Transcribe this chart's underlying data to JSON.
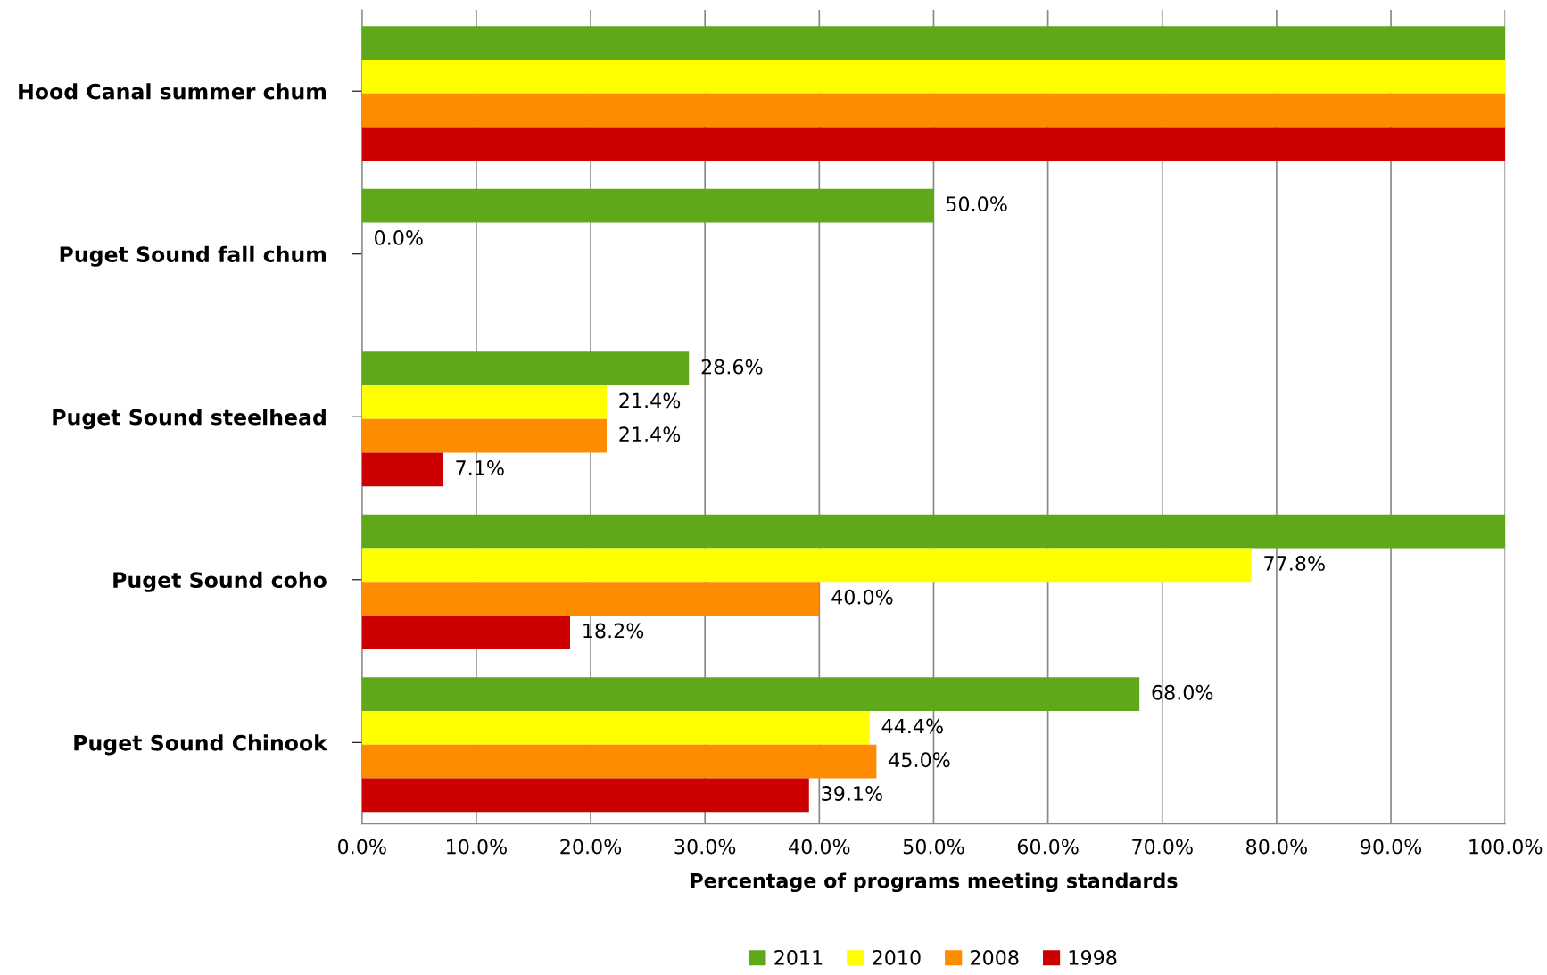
{
  "chart_data": {
    "type": "bar",
    "orientation": "horizontal",
    "xlabel": "Percentage of programs meeting standards",
    "categories": [
      "Hood Canal summer chum",
      "Puget Sound fall chum",
      "Puget Sound steelhead",
      "Puget Sound coho",
      "Puget Sound Chinook"
    ],
    "series": [
      {
        "name": "2011",
        "color": "#5fa81a",
        "values": [
          100,
          50.0,
          28.6,
          100,
          68.0
        ],
        "value_labels": [
          null,
          "50.0%",
          "28.6%",
          null,
          "68.0%"
        ]
      },
      {
        "name": "2010",
        "color": "#ffff00",
        "values": [
          100,
          0.0,
          21.4,
          77.8,
          44.4
        ],
        "value_labels": [
          null,
          "0.0%",
          "21.4%",
          "77.8%",
          "44.4%"
        ]
      },
      {
        "name": "2008",
        "color": "#ff8c00",
        "values": [
          100,
          null,
          21.4,
          40.0,
          45.0
        ],
        "value_labels": [
          null,
          null,
          "21.4%",
          "40.0%",
          "45.0%"
        ]
      },
      {
        "name": "1998",
        "color": "#cc0000",
        "values": [
          100,
          null,
          7.1,
          18.2,
          39.1
        ],
        "value_labels": [
          null,
          null,
          "7.1%",
          "18.2%",
          "39.1%"
        ]
      }
    ],
    "xlim": [
      0,
      100
    ],
    "xticks": [
      {
        "value": 0,
        "label": "0.0%"
      },
      {
        "value": 10,
        "label": "10.0%"
      },
      {
        "value": 20,
        "label": "20.0%"
      },
      {
        "value": 30,
        "label": "30.0%"
      },
      {
        "value": 40,
        "label": "40.0%"
      },
      {
        "value": 50,
        "label": "50.0%"
      },
      {
        "value": 60,
        "label": "60.0%"
      },
      {
        "value": 70,
        "label": "70.0%"
      },
      {
        "value": 80,
        "label": "80.0%"
      },
      {
        "value": 90,
        "label": "90.0%"
      },
      {
        "value": 100,
        "label": "100.0%"
      }
    ],
    "grid": "x",
    "legend": "bottom"
  }
}
